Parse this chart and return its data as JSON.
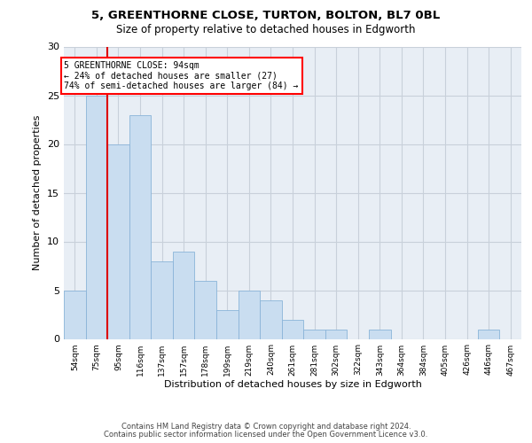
{
  "title": "5, GREENTHORNE CLOSE, TURTON, BOLTON, BL7 0BL",
  "subtitle": "Size of property relative to detached houses in Edgworth",
  "xlabel": "Distribution of detached houses by size in Edgworth",
  "ylabel": "Number of detached properties",
  "bar_labels": [
    "54sqm",
    "75sqm",
    "95sqm",
    "116sqm",
    "137sqm",
    "157sqm",
    "178sqm",
    "199sqm",
    "219sqm",
    "240sqm",
    "261sqm",
    "281sqm",
    "302sqm",
    "322sqm",
    "343sqm",
    "364sqm",
    "384sqm",
    "405sqm",
    "426sqm",
    "446sqm",
    "467sqm"
  ],
  "bar_values": [
    5,
    25,
    20,
    23,
    8,
    9,
    6,
    3,
    5,
    4,
    2,
    1,
    1,
    0,
    1,
    0,
    0,
    0,
    0,
    1,
    0
  ],
  "bar_color": "#c9ddf0",
  "bar_edge_color": "#8ab4d8",
  "highlight_line_color": "#dd0000",
  "annotation_box_text": "5 GREENTHORNE CLOSE: 94sqm\n← 24% of detached houses are smaller (27)\n74% of semi-detached houses are larger (84) →",
  "ylim": [
    0,
    30
  ],
  "yticks": [
    0,
    5,
    10,
    15,
    20,
    25,
    30
  ],
  "grid_color": "#c8d0da",
  "bg_color": "#e8eef5",
  "footer_line1": "Contains HM Land Registry data © Crown copyright and database right 2024.",
  "footer_line2": "Contains public sector information licensed under the Open Government Licence v3.0."
}
